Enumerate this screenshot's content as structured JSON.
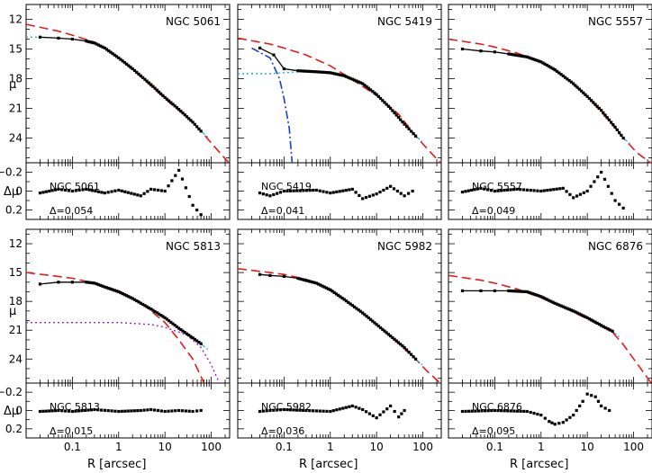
{
  "figure": {
    "ylabel_main": "μ",
    "ylabel_res": "Δμ",
    "xlabel": "R [arcsec]",
    "x_tick_labels": [
      "0.1",
      "1",
      "10",
      "100"
    ],
    "y_tick_labels_main": [
      "12",
      "15",
      "18",
      "21",
      "24"
    ],
    "y_tick_labels_res": [
      "−0.2",
      "0",
      "0.2"
    ]
  },
  "chart_data": [
    {
      "type": "scatter",
      "title": "NGC 5061",
      "delta_label": "Δ=0.054",
      "xscale": "log",
      "xlim": [
        0.01,
        250
      ],
      "ylim_main": [
        26.5,
        10.5
      ],
      "ylim_res": [
        0.3,
        -0.3
      ],
      "profile": [
        [
          0.02,
          13.8
        ],
        [
          0.05,
          13.9
        ],
        [
          0.1,
          14.0
        ],
        [
          0.2,
          14.2
        ],
        [
          0.3,
          14.4
        ],
        [
          0.5,
          14.9
        ],
        [
          1,
          15.9
        ],
        [
          2,
          17.0
        ],
        [
          5,
          18.6
        ],
        [
          10,
          19.9
        ],
        [
          20,
          21.1
        ],
        [
          40,
          22.4
        ],
        [
          60,
          23.3
        ]
      ],
      "sersic": [
        [
          0.01,
          12.5
        ],
        [
          0.05,
          13.2
        ],
        [
          0.1,
          13.6
        ],
        [
          0.3,
          14.3
        ],
        [
          0.5,
          14.9
        ],
        [
          1,
          15.9
        ],
        [
          3,
          17.8
        ],
        [
          10,
          20.0
        ],
        [
          30,
          21.9
        ],
        [
          60,
          23.3
        ],
        [
          100,
          24.5
        ],
        [
          250,
          26.6
        ]
      ],
      "inner": [
        [
          0.01,
          13.8
        ],
        [
          0.02,
          13.8
        ]
      ],
      "residuals": [
        [
          0.02,
          0.02
        ],
        [
          0.05,
          -0.02
        ],
        [
          0.1,
          0.0
        ],
        [
          0.2,
          -0.02
        ],
        [
          0.5,
          0.02
        ],
        [
          1,
          -0.01
        ],
        [
          3,
          0.05
        ],
        [
          5,
          -0.02
        ],
        [
          10,
          0.0
        ],
        [
          20,
          -0.22
        ],
        [
          40,
          0.15
        ],
        [
          60,
          0.25
        ]
      ]
    },
    {
      "type": "scatter",
      "title": "NGC 5419",
      "delta_label": "Δ=0.041",
      "xscale": "log",
      "xlim": [
        0.01,
        250
      ],
      "ylim_main": [
        26.5,
        10.5
      ],
      "ylim_res": [
        0.3,
        -0.3
      ],
      "profile": [
        [
          0.03,
          14.9
        ],
        [
          0.06,
          15.6
        ],
        [
          0.1,
          17.0
        ],
        [
          0.2,
          17.2
        ],
        [
          0.5,
          17.3
        ],
        [
          1,
          17.4
        ],
        [
          2,
          17.7
        ],
        [
          5,
          18.5
        ],
        [
          10,
          19.6
        ],
        [
          20,
          21.0
        ],
        [
          40,
          22.6
        ],
        [
          70,
          23.8
        ]
      ],
      "sersic": [
        [
          0.01,
          13.9
        ],
        [
          0.05,
          14.5
        ],
        [
          0.1,
          14.9
        ],
        [
          0.3,
          15.6
        ],
        [
          1,
          16.7
        ],
        [
          3,
          18.1
        ],
        [
          10,
          19.7
        ],
        [
          30,
          21.6
        ],
        [
          70,
          23.8
        ],
        [
          120,
          25.0
        ],
        [
          250,
          26.6
        ]
      ],
      "core": [
        [
          0.01,
          17.5
        ],
        [
          0.05,
          17.5
        ],
        [
          0.1,
          17.4
        ],
        [
          0.2,
          17.3
        ]
      ],
      "dashdot_inner": [
        [
          0.02,
          14.9
        ],
        [
          0.05,
          15.9
        ],
        [
          0.08,
          18.0
        ],
        [
          0.1,
          20.0
        ],
        [
          0.13,
          23.0
        ],
        [
          0.15,
          26.5
        ]
      ],
      "residuals": [
        [
          0.03,
          0.02
        ],
        [
          0.05,
          0.05
        ],
        [
          0.1,
          0.0
        ],
        [
          0.5,
          -0.01
        ],
        [
          1,
          0.02
        ],
        [
          3,
          -0.02
        ],
        [
          5,
          0.08
        ],
        [
          10,
          0.03
        ],
        [
          20,
          -0.05
        ],
        [
          40,
          0.05
        ],
        [
          60,
          0.0
        ]
      ]
    },
    {
      "type": "scatter",
      "title": "NGC 5557",
      "delta_label": "Δ=0.049",
      "xscale": "log",
      "xlim": [
        0.01,
        250
      ],
      "ylim_main": [
        26.5,
        10.5
      ],
      "ylim_res": [
        0.3,
        -0.3
      ],
      "profile": [
        [
          0.02,
          15.0
        ],
        [
          0.05,
          15.2
        ],
        [
          0.1,
          15.3
        ],
        [
          0.2,
          15.5
        ],
        [
          0.5,
          15.8
        ],
        [
          1,
          16.3
        ],
        [
          2,
          17.1
        ],
        [
          5,
          18.5
        ],
        [
          10,
          19.8
        ],
        [
          20,
          21.2
        ],
        [
          40,
          22.9
        ],
        [
          60,
          24.0
        ]
      ],
      "sersic": [
        [
          0.01,
          14.0
        ],
        [
          0.05,
          14.5
        ],
        [
          0.1,
          14.8
        ],
        [
          0.3,
          15.4
        ],
        [
          1,
          16.3
        ],
        [
          3,
          17.7
        ],
        [
          10,
          19.8
        ],
        [
          30,
          22.3
        ],
        [
          60,
          24.0
        ],
        [
          120,
          25.5
        ],
        [
          250,
          26.6
        ]
      ],
      "residuals": [
        [
          0.02,
          0.01
        ],
        [
          0.05,
          -0.03
        ],
        [
          0.1,
          0.0
        ],
        [
          0.3,
          -0.02
        ],
        [
          1,
          0.0
        ],
        [
          3,
          -0.03
        ],
        [
          5,
          0.07
        ],
        [
          10,
          0.0
        ],
        [
          20,
          -0.2
        ],
        [
          40,
          0.1
        ],
        [
          60,
          0.18
        ]
      ]
    },
    {
      "type": "scatter",
      "title": "NGC 5813",
      "delta_label": "Δ=0.015",
      "xscale": "log",
      "xlim": [
        0.01,
        250
      ],
      "ylim_main": [
        26.5,
        10.5
      ],
      "ylim_res": [
        0.3,
        -0.3
      ],
      "profile": [
        [
          0.02,
          16.2
        ],
        [
          0.05,
          16.0
        ],
        [
          0.1,
          16.0
        ],
        [
          0.2,
          16.0
        ],
        [
          0.3,
          16.1
        ],
        [
          0.5,
          16.5
        ],
        [
          1,
          17.0
        ],
        [
          2,
          17.7
        ],
        [
          5,
          18.8
        ],
        [
          10,
          19.7
        ],
        [
          20,
          20.8
        ],
        [
          40,
          21.8
        ],
        [
          60,
          22.4
        ]
      ],
      "sersic": [
        [
          0.01,
          15.0
        ],
        [
          0.05,
          15.4
        ],
        [
          0.1,
          15.6
        ],
        [
          0.3,
          16.1
        ],
        [
          1,
          16.9
        ],
        [
          3,
          18.1
        ],
        [
          10,
          20.2
        ],
        [
          20,
          22.0
        ],
        [
          40,
          24.0
        ],
        [
          70,
          26.5
        ]
      ],
      "outer": [
        [
          0.01,
          20.2
        ],
        [
          1,
          20.2
        ],
        [
          5,
          20.4
        ],
        [
          10,
          20.7
        ],
        [
          30,
          21.5
        ],
        [
          60,
          22.8
        ],
        [
          100,
          24.6
        ],
        [
          150,
          26.5
        ]
      ],
      "residuals": [
        [
          0.02,
          0.01
        ],
        [
          0.05,
          0.0
        ],
        [
          0.1,
          0.01
        ],
        [
          0.3,
          -0.01
        ],
        [
          1,
          0.01
        ],
        [
          3,
          0.0
        ],
        [
          5,
          -0.01
        ],
        [
          10,
          0.01
        ],
        [
          20,
          0.0
        ],
        [
          40,
          0.01
        ],
        [
          60,
          0.0
        ]
      ]
    },
    {
      "type": "scatter",
      "title": "NGC 5982",
      "delta_label": "Δ=0.036",
      "xscale": "log",
      "xlim": [
        0.01,
        250
      ],
      "ylim_main": [
        26.5,
        10.5
      ],
      "ylim_res": [
        0.3,
        -0.3
      ],
      "profile": [
        [
          0.03,
          15.2
        ],
        [
          0.05,
          15.3
        ],
        [
          0.1,
          15.4
        ],
        [
          0.2,
          15.6
        ],
        [
          0.5,
          16.1
        ],
        [
          1,
          16.8
        ],
        [
          2,
          17.8
        ],
        [
          5,
          19.2
        ],
        [
          10,
          20.4
        ],
        [
          20,
          21.6
        ],
        [
          40,
          22.8
        ],
        [
          70,
          24.0
        ]
      ],
      "sersic": [
        [
          0.01,
          14.6
        ],
        [
          0.05,
          15.0
        ],
        [
          0.1,
          15.2
        ],
        [
          0.3,
          15.7
        ],
        [
          1,
          16.7
        ],
        [
          3,
          18.4
        ],
        [
          10,
          20.4
        ],
        [
          30,
          22.4
        ],
        [
          70,
          24.0
        ],
        [
          120,
          25.2
        ],
        [
          250,
          26.6
        ]
      ],
      "residuals": [
        [
          0.03,
          0.01
        ],
        [
          0.05,
          0.0
        ],
        [
          0.1,
          -0.01
        ],
        [
          0.3,
          0.0
        ],
        [
          1,
          0.01
        ],
        [
          3,
          -0.05
        ],
        [
          5,
          -0.01
        ],
        [
          10,
          0.08
        ],
        [
          20,
          -0.05
        ],
        [
          30,
          0.07
        ],
        [
          40,
          0.0
        ]
      ]
    },
    {
      "type": "scatter",
      "title": "NGC 6876",
      "delta_label": "Δ=0.095",
      "xscale": "log",
      "xlim": [
        0.01,
        250
      ],
      "ylim_main": [
        26.5,
        10.5
      ],
      "ylim_res": [
        0.3,
        -0.3
      ],
      "profile": [
        [
          0.02,
          16.9
        ],
        [
          0.05,
          16.9
        ],
        [
          0.1,
          16.9
        ],
        [
          0.2,
          16.9
        ],
        [
          0.5,
          17.0
        ],
        [
          1,
          17.5
        ],
        [
          2,
          18.2
        ],
        [
          5,
          19.0
        ],
        [
          10,
          19.7
        ],
        [
          20,
          20.5
        ],
        [
          35,
          21.1
        ]
      ],
      "sersic": [
        [
          0.01,
          15.3
        ],
        [
          0.05,
          15.8
        ],
        [
          0.1,
          16.1
        ],
        [
          0.3,
          16.7
        ],
        [
          1,
          17.6
        ],
        [
          3,
          18.6
        ],
        [
          10,
          19.8
        ],
        [
          35,
          21.2
        ],
        [
          60,
          22.5
        ],
        [
          120,
          24.5
        ],
        [
          250,
          26.6
        ]
      ],
      "residuals": [
        [
          0.02,
          0.01
        ],
        [
          0.1,
          0.0
        ],
        [
          0.5,
          0.01
        ],
        [
          1,
          0.05
        ],
        [
          1.5,
          0.12
        ],
        [
          2,
          0.15
        ],
        [
          3,
          0.13
        ],
        [
          5,
          0.05
        ],
        [
          8,
          -0.1
        ],
        [
          10,
          -0.18
        ],
        [
          15,
          -0.15
        ],
        [
          20,
          -0.05
        ],
        [
          30,
          0.0
        ]
      ]
    }
  ]
}
